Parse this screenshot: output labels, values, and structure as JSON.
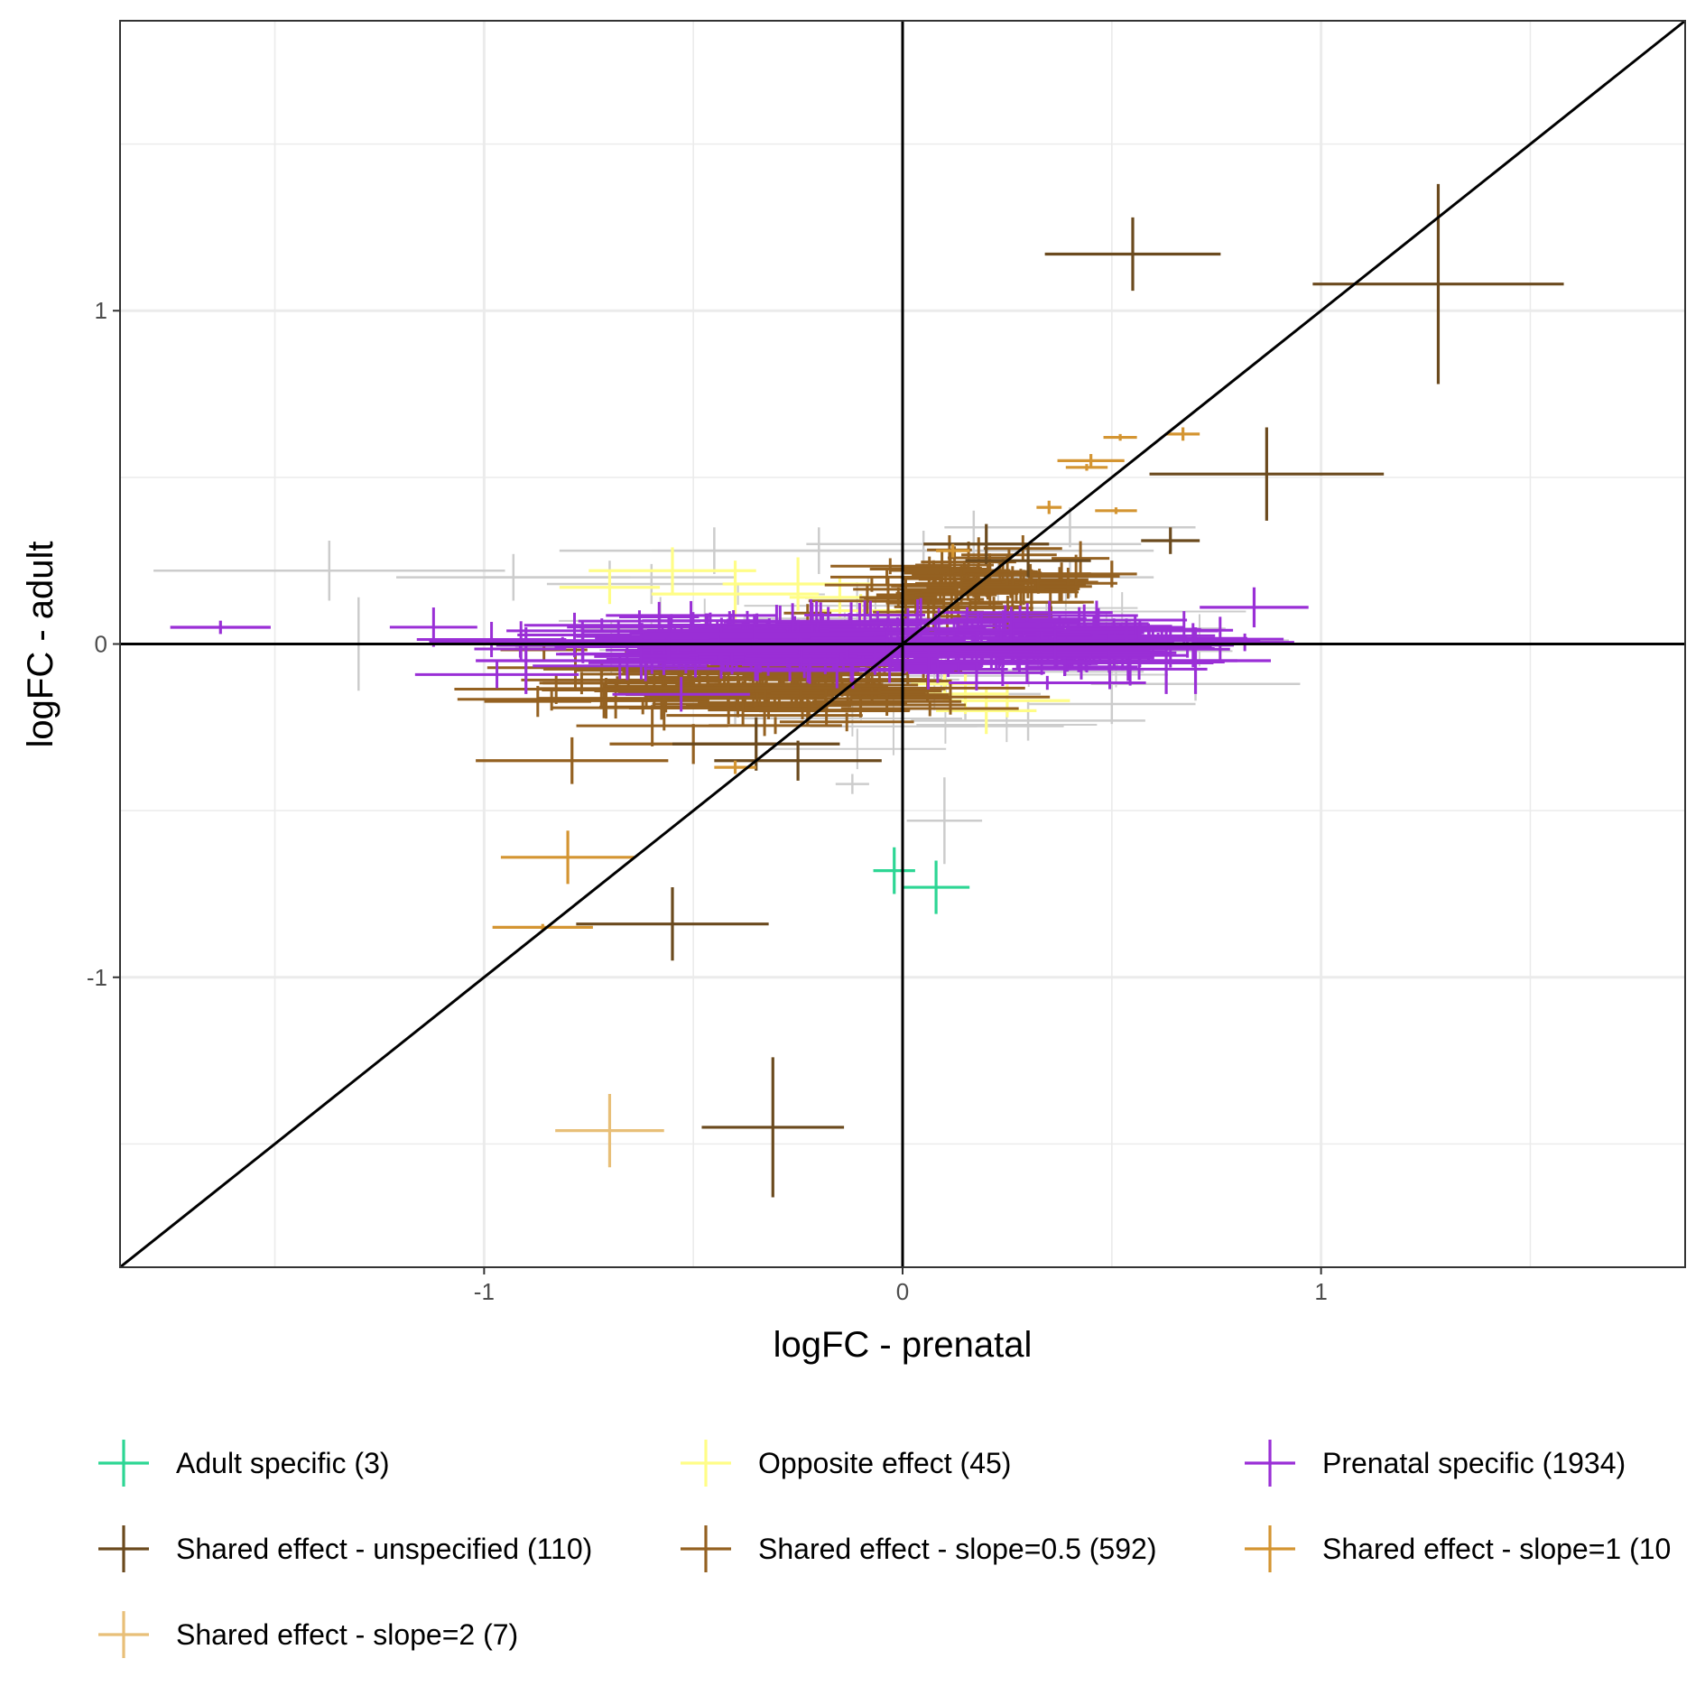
{
  "chart_data": {
    "type": "scatter",
    "xlabel": "logFC - prenatal",
    "ylabel": "logFC - adult",
    "xlim": [
      -1.87,
      1.87
    ],
    "ylim": [
      -1.87,
      1.87
    ],
    "x_ticks": [
      -1,
      0,
      1
    ],
    "y_ticks": [
      -1,
      0,
      1
    ],
    "grid": true,
    "reference_lines": [
      "x=0",
      "y=0",
      "y=x"
    ],
    "error_bars": "horizontal and vertical (95% CI)",
    "legend_position": "bottom",
    "grey_points_color": "#cccccc",
    "series": [
      {
        "name": "Adult specific (3)",
        "color": "#2dd694",
        "points": [
          {
            "x": -0.02,
            "y": -0.68,
            "xerr": 0.05,
            "yerr": 0.07
          },
          {
            "x": 0.08,
            "y": -0.73,
            "xerr": 0.08,
            "yerr": 0.08
          }
        ]
      },
      {
        "name": "Opposite effect (45)",
        "color": "#fffd87",
        "points": [
          {
            "x": -0.7,
            "y": 0.17,
            "xerr": 0.12,
            "yerr": 0.05
          },
          {
            "x": -0.55,
            "y": 0.22,
            "xerr": 0.2,
            "yerr": 0.07
          },
          {
            "x": -0.4,
            "y": 0.15,
            "xerr": 0.2,
            "yerr": 0.1
          },
          {
            "x": -0.25,
            "y": 0.18,
            "xerr": 0.18,
            "yerr": 0.08
          },
          {
            "x": -0.15,
            "y": 0.14,
            "xerr": 0.12,
            "yerr": 0.06
          },
          {
            "x": -0.1,
            "y": 0.1,
            "xerr": 0.1,
            "yerr": 0.05
          },
          {
            "x": 0.1,
            "y": -0.12,
            "xerr": 0.08,
            "yerr": 0.05
          },
          {
            "x": 0.15,
            "y": -0.15,
            "xerr": 0.1,
            "yerr": 0.06
          },
          {
            "x": 0.2,
            "y": -0.2,
            "xerr": 0.12,
            "yerr": 0.07
          },
          {
            "x": 0.25,
            "y": -0.17,
            "xerr": 0.15,
            "yerr": 0.05
          }
        ]
      },
      {
        "name": "Prenatal specific (1934)",
        "color": "#9a2fd6",
        "points": [
          {
            "x": -1.63,
            "y": 0.05,
            "xerr": 0.12,
            "yerr": 0.02
          },
          {
            "x": 0.84,
            "y": 0.11,
            "xerr": 0.13,
            "yerr": 0.06
          },
          {
            "x": 0.63,
            "y": -0.05,
            "xerr": 0.17,
            "yerr": 0.1
          },
          {
            "x": 0.7,
            "y": -0.05,
            "xerr": 0.18,
            "yerr": 0.1
          },
          {
            "x": -0.9,
            "y": -0.05,
            "xerr": 0.12,
            "yerr": 0.1
          }
        ],
        "clusters": [
          {
            "cx": -0.38,
            "cy": 0.01,
            "sx": 0.26,
            "sy": 0.04,
            "n": 160,
            "xerr": 0.18,
            "yerr": 0.05
          },
          {
            "cx": 0.35,
            "cy": 0.0,
            "sx": 0.2,
            "sy": 0.04,
            "n": 130,
            "xerr": 0.16,
            "yerr": 0.05
          }
        ]
      },
      {
        "name": "Shared effect - unspecified (110)",
        "color": "#6b4a1e",
        "points": [
          {
            "x": 0.55,
            "y": 1.17,
            "xerr": 0.21,
            "yerr": 0.11
          },
          {
            "x": 1.28,
            "y": 1.08,
            "xerr": 0.3,
            "yerr": 0.3
          },
          {
            "x": 0.87,
            "y": 0.51,
            "xerr": 0.28,
            "yerr": 0.14
          },
          {
            "x": -0.55,
            "y": -0.84,
            "xerr": 0.23,
            "yerr": 0.11
          },
          {
            "x": -0.31,
            "y": -1.45,
            "xerr": 0.17,
            "yerr": 0.21
          },
          {
            "x": 0.64,
            "y": 0.31,
            "xerr": 0.07,
            "yerr": 0.04
          },
          {
            "x": -0.35,
            "y": -0.3,
            "xerr": 0.2,
            "yerr": 0.08
          },
          {
            "x": -0.25,
            "y": -0.35,
            "xerr": 0.2,
            "yerr": 0.06
          },
          {
            "x": 0.2,
            "y": 0.3,
            "xerr": 0.15,
            "yerr": 0.06
          },
          {
            "x": 0.3,
            "y": 0.25,
            "xerr": 0.15,
            "yerr": 0.05
          }
        ]
      },
      {
        "name": "Shared effect - slope=0.5 (592)",
        "color": "#946121",
        "points": [
          {
            "x": -0.79,
            "y": -0.35,
            "xerr": 0.23,
            "yerr": 0.07
          },
          {
            "x": 0.5,
            "y": 0.21,
            "xerr": 0.06,
            "yerr": 0.04
          },
          {
            "x": -0.5,
            "y": -0.3,
            "xerr": 0.2,
            "yerr": 0.06
          }
        ],
        "clusters": [
          {
            "cx": -0.35,
            "cy": -0.13,
            "sx": 0.24,
            "sy": 0.05,
            "n": 110,
            "xerr": 0.18,
            "yerr": 0.05
          },
          {
            "cx": 0.18,
            "cy": 0.17,
            "sx": 0.12,
            "sy": 0.05,
            "n": 80,
            "xerr": 0.1,
            "yerr": 0.05
          }
        ]
      },
      {
        "name": "Shared effect - slope=1 (10",
        "color": "#d49532",
        "points": [
          {
            "x": -0.8,
            "y": -0.64,
            "xerr": 0.16,
            "yerr": 0.08
          },
          {
            "x": -0.86,
            "y": -0.85,
            "xerr": 0.12,
            "yerr": 0.01
          },
          {
            "x": 0.52,
            "y": 0.62,
            "xerr": 0.04,
            "yerr": 0.01
          },
          {
            "x": 0.67,
            "y": 0.63,
            "xerr": 0.04,
            "yerr": 0.02
          },
          {
            "x": 0.45,
            "y": 0.55,
            "xerr": 0.08,
            "yerr": 0.02
          },
          {
            "x": 0.44,
            "y": 0.53,
            "xerr": 0.05,
            "yerr": 0.01
          },
          {
            "x": 0.51,
            "y": 0.4,
            "xerr": 0.05,
            "yerr": 0.01
          },
          {
            "x": 0.35,
            "y": 0.41,
            "xerr": 0.03,
            "yerr": 0.02
          },
          {
            "x": -0.4,
            "y": -0.37,
            "xerr": 0.05,
            "yerr": 0.02
          },
          {
            "x": 0.12,
            "y": 0.28,
            "xerr": 0.04,
            "yerr": 0.02
          }
        ]
      },
      {
        "name": "Shared effect - slope=2 (7)",
        "color": "#e8bf78",
        "points": [
          {
            "x": -0.7,
            "y": -1.46,
            "xerr": 0.13,
            "yerr": 0.11
          }
        ]
      }
    ],
    "grey_points": [
      {
        "x": -1.37,
        "y": 0.22,
        "xerr": 0.42,
        "yerr": 0.09
      },
      {
        "x": -1.3,
        "y": 0.0,
        "xerr": 0.42,
        "yerr": 0.14
      },
      {
        "x": -0.93,
        "y": 0.2,
        "xerr": 0.28,
        "yerr": 0.07
      },
      {
        "x": -0.7,
        "y": 0.2,
        "xerr": 0.3,
        "yerr": 0.05
      },
      {
        "x": -0.45,
        "y": 0.28,
        "xerr": 0.37,
        "yerr": 0.07
      },
      {
        "x": -0.2,
        "y": 0.28,
        "xerr": 0.4,
        "yerr": 0.07
      },
      {
        "x": 0.05,
        "y": 0.28,
        "xerr": 0.55,
        "yerr": 0.06
      },
      {
        "x": 0.17,
        "y": 0.3,
        "xerr": 0.4,
        "yerr": 0.1
      },
      {
        "x": 0.4,
        "y": 0.35,
        "xerr": 0.3,
        "yerr": 0.06
      },
      {
        "x": 0.15,
        "y": -0.15,
        "xerr": 0.18,
        "yerr": 0.08
      },
      {
        "x": 0.3,
        "y": -0.23,
        "xerr": 0.28,
        "yerr": 0.06
      },
      {
        "x": 0.5,
        "y": -0.18,
        "xerr": 0.2,
        "yerr": 0.06
      },
      {
        "x": 0.1,
        "y": -0.53,
        "xerr": 0.09,
        "yerr": 0.13
      },
      {
        "x": -0.12,
        "y": -0.42,
        "xerr": 0.04,
        "yerr": 0.03
      },
      {
        "x": 0.7,
        "y": -0.12,
        "xerr": 0.25,
        "yerr": 0.05
      },
      {
        "x": -0.4,
        "y": -0.18,
        "xerr": 0.2,
        "yerr": 0.06
      },
      {
        "x": -0.6,
        "y": 0.18,
        "xerr": 0.25,
        "yerr": 0.06
      },
      {
        "x": 0.4,
        "y": 0.2,
        "xerr": 0.2,
        "yerr": 0.06
      }
    ]
  }
}
